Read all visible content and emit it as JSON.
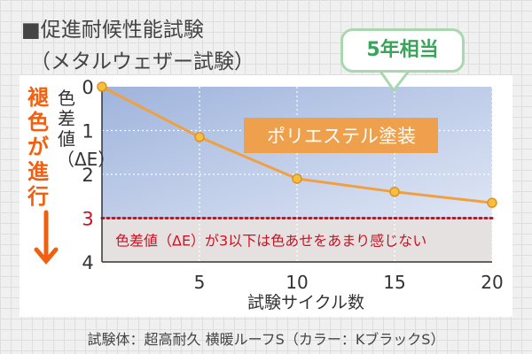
{
  "title_line1": "■促進耐候性能試験",
  "title_line2": "（メタルウェザー試験）",
  "callout": "5年相当",
  "side_label": "褪色が進行",
  "footer": "試験体：超高耐久 横暖ルーフS（カラー：KブラックS）",
  "colors": {
    "line": "#f0a040",
    "threshold": "#cc1122",
    "accent": "#f06010",
    "callout": "#3aa55a"
  },
  "chart_data": {
    "type": "line",
    "xlabel": "試験サイクル数",
    "ylabel": "色差値（ΔE）",
    "x_ticks": [
      "5",
      "10",
      "15",
      "20"
    ],
    "y_ticks": [
      "0",
      "1",
      "2",
      "3",
      "4"
    ],
    "xlim": [
      0,
      20
    ],
    "ylim": [
      0,
      4
    ],
    "y_inverted": true,
    "grid": true,
    "series": [
      {
        "name": "ポリエステル塗装",
        "x": [
          0,
          5,
          10,
          15,
          20
        ],
        "y": [
          0,
          1.15,
          2.1,
          2.4,
          2.65
        ]
      }
    ],
    "threshold": {
      "y": 3,
      "label": "色差値（ΔE）が3以下は色あせをあまり感じない"
    }
  }
}
